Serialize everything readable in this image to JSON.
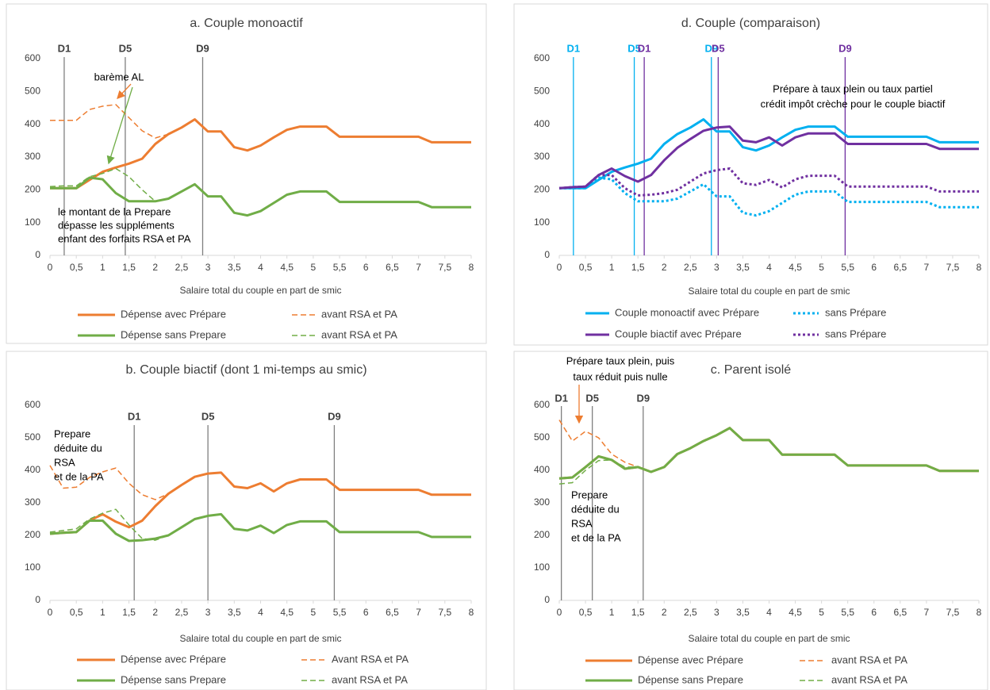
{
  "chart_data": [
    {
      "type": "line",
      "title": "a. Couple monoactif",
      "x_label": "Salaire total du couple en part de smic",
      "x": [
        0,
        0.25,
        0.5,
        0.75,
        1,
        1.25,
        1.5,
        1.75,
        2,
        2.25,
        2.5,
        2.75,
        3,
        3.25,
        3.5,
        3.75,
        4,
        4.25,
        4.5,
        4.75,
        5,
        5.25,
        5.5,
        5.75,
        6,
        6.25,
        6.5,
        6.75,
        7,
        7.25,
        7.5,
        7.75,
        8
      ],
      "xlim": [
        0,
        8
      ],
      "ylim": [
        0,
        600
      ],
      "yticks": [
        0,
        100,
        200,
        300,
        400,
        500,
        600
      ],
      "xticks": [
        0,
        {
          "value": 0.5,
          "label": "0,5"
        },
        1,
        {
          "value": 1.5,
          "label": "1,5"
        },
        2,
        {
          "value": 2.5,
          "label": "2,5"
        },
        3,
        {
          "value": 3.5,
          "label": "3,5"
        },
        4,
        {
          "value": 4.5,
          "label": "4,5"
        },
        5,
        {
          "value": 5.5,
          "label": "5,5"
        },
        6,
        {
          "value": 6.5,
          "label": "6,5"
        },
        7,
        {
          "value": 7.5,
          "label": "7,5"
        },
        8
      ],
      "series": [
        {
          "name": "Dépense avec Prépare",
          "color": "#ed7d31",
          "style": "solid",
          "values": [
            205,
            205,
            205,
            230,
            255,
            268,
            280,
            295,
            340,
            370,
            390,
            415,
            378,
            378,
            330,
            320,
            335,
            360,
            383,
            393,
            393,
            393,
            362,
            362,
            362,
            362,
            362,
            362,
            362,
            345,
            345,
            345,
            345
          ]
        },
        {
          "name": "avant RSA et PA",
          "color": "#ed7d31",
          "style": "dashed",
          "values": [
            412,
            412,
            412,
            445,
            455,
            460,
            420,
            380,
            358,
            370,
            null,
            null,
            null,
            null,
            null,
            null,
            null,
            null,
            null,
            null,
            null,
            null,
            null,
            null,
            null,
            null,
            null,
            null,
            null,
            null,
            null,
            null,
            null
          ]
        },
        {
          "name": "Dépense sans Prepare",
          "color": "#70ad47",
          "style": "solid",
          "values": [
            205,
            205,
            205,
            237,
            232,
            190,
            165,
            165,
            165,
            173,
            195,
            217,
            180,
            180,
            130,
            122,
            135,
            160,
            185,
            195,
            195,
            195,
            163,
            163,
            163,
            163,
            163,
            163,
            163,
            147,
            147,
            147,
            147
          ]
        },
        {
          "name": "avant RSA et PA",
          "color": "#70ad47",
          "style": "dashed",
          "values": [
            210,
            212,
            212,
            240,
            250,
            265,
            240,
            200,
            165,
            null,
            null,
            null,
            null,
            null,
            null,
            null,
            null,
            null,
            null,
            null,
            null,
            null,
            null,
            null,
            null,
            null,
            null,
            null,
            null,
            null,
            null,
            null,
            null
          ]
        }
      ],
      "vlines": [
        {
          "x": 0.27,
          "label": "D1",
          "color": "#7f7f7f"
        },
        {
          "x": 1.43,
          "label": "D5",
          "color": "#7f7f7f"
        },
        {
          "x": 2.9,
          "label": "D9",
          "color": "#7f7f7f"
        }
      ],
      "annotations": [
        [
          "barème AL"
        ],
        [
          "le montant de la Prepare",
          "dépasse les suppléments",
          "enfant des forfaits RSA et PA"
        ]
      ]
    },
    {
      "type": "line",
      "title": "d. Couple (comparaison)",
      "x_label": "Salaire total du couple en part de smic",
      "x": [
        0,
        0.25,
        0.5,
        0.75,
        1,
        1.25,
        1.5,
        1.75,
        2,
        2.25,
        2.5,
        2.75,
        3,
        3.25,
        3.5,
        3.75,
        4,
        4.25,
        4.5,
        4.75,
        5,
        5.25,
        5.5,
        5.75,
        6,
        6.25,
        6.5,
        6.75,
        7,
        7.25,
        7.5,
        7.75,
        8
      ],
      "xlim": [
        0,
        8
      ],
      "ylim": [
        0,
        600
      ],
      "yticks": [
        0,
        100,
        200,
        300,
        400,
        500,
        600
      ],
      "xticks": [
        0,
        {
          "value": 0.5,
          "label": "0,5"
        },
        1,
        {
          "value": 1.5,
          "label": "1,5"
        },
        2,
        {
          "value": 2.5,
          "label": "2,5"
        },
        3,
        {
          "value": 3.5,
          "label": "3,5"
        },
        4,
        {
          "value": 4.5,
          "label": "4,5"
        },
        5,
        {
          "value": 5.5,
          "label": "5,5"
        },
        6,
        {
          "value": 6.5,
          "label": "6,5"
        },
        7,
        {
          "value": 7.5,
          "label": "7,5"
        },
        8
      ],
      "series": [
        {
          "name": "Couple monoactif avec Prépare",
          "color": "#00b0f0",
          "style": "solid",
          "values": [
            205,
            205,
            205,
            230,
            255,
            268,
            280,
            295,
            340,
            370,
            390,
            415,
            378,
            378,
            330,
            320,
            335,
            360,
            383,
            393,
            393,
            393,
            362,
            362,
            362,
            362,
            362,
            362,
            362,
            345,
            345,
            345,
            345
          ]
        },
        {
          "name": "sans Prépare",
          "color": "#00b0f0",
          "style": "dotted",
          "values": [
            205,
            205,
            205,
            237,
            232,
            190,
            165,
            165,
            165,
            173,
            195,
            217,
            180,
            180,
            130,
            122,
            135,
            160,
            185,
            195,
            195,
            195,
            163,
            163,
            163,
            163,
            163,
            163,
            163,
            147,
            147,
            147,
            147
          ]
        },
        {
          "name": "Couple biactif avec Prépare",
          "color": "#7030a0",
          "style": "solid",
          "values": [
            205,
            208,
            210,
            245,
            265,
            242,
            225,
            245,
            290,
            328,
            355,
            380,
            390,
            393,
            350,
            345,
            360,
            335,
            360,
            372,
            372,
            372,
            340,
            340,
            340,
            340,
            340,
            340,
            340,
            325,
            325,
            325,
            325
          ]
        },
        {
          "name": "sans Prépare",
          "color": "#7030a0",
          "style": "dotted",
          "values": [
            205,
            208,
            210,
            245,
            245,
            205,
            183,
            185,
            190,
            200,
            225,
            250,
            260,
            265,
            220,
            215,
            230,
            207,
            232,
            243,
            243,
            243,
            210,
            210,
            210,
            210,
            210,
            210,
            210,
            195,
            195,
            195,
            195
          ]
        }
      ],
      "vlines": [
        {
          "x": 0.27,
          "label": "D1",
          "color": "#00b0f0"
        },
        {
          "x": 1.43,
          "label": "D5",
          "color": "#00b0f0"
        },
        {
          "x": 2.9,
          "label": "D9",
          "color": "#00b0f0"
        },
        {
          "x": 1.62,
          "label": "D1",
          "color": "#7030a0"
        },
        {
          "x": 3.03,
          "label": "D5",
          "color": "#7030a0"
        },
        {
          "x": 5.45,
          "label": "D9",
          "color": "#7030a0"
        }
      ],
      "annotations": [
        [
          "Prépare à taux plein ou taux partiel",
          "crédit impôt crèche pour le couple biactif"
        ]
      ]
    },
    {
      "type": "line",
      "title": "b. Couple biactif (dont 1 mi-temps au smic)",
      "x_label": "Salaire total du couple en part de smic",
      "x": [
        0,
        0.25,
        0.5,
        0.75,
        1,
        1.25,
        1.5,
        1.75,
        2,
        2.25,
        2.5,
        2.75,
        3,
        3.25,
        3.5,
        3.75,
        4,
        4.25,
        4.5,
        4.75,
        5,
        5.25,
        5.5,
        5.75,
        6,
        6.25,
        6.5,
        6.75,
        7,
        7.25,
        7.5,
        7.75,
        8
      ],
      "xlim": [
        0,
        8
      ],
      "ylim": [
        0,
        600
      ],
      "yticks": [
        0,
        100,
        200,
        300,
        400,
        500,
        600
      ],
      "xticks": [
        0,
        {
          "value": 0.5,
          "label": "0,5"
        },
        1,
        {
          "value": 1.5,
          "label": "1,5"
        },
        2,
        {
          "value": 2.5,
          "label": "2,5"
        },
        3,
        {
          "value": 3.5,
          "label": "3,5"
        },
        4,
        {
          "value": 4.5,
          "label": "4,5"
        },
        5,
        {
          "value": 5.5,
          "label": "5,5"
        },
        6,
        {
          "value": 6.5,
          "label": "6,5"
        },
        7,
        {
          "value": 7.5,
          "label": "7,5"
        },
        8
      ],
      "series": [
        {
          "name": "Dépense avec Prépare",
          "color": "#ed7d31",
          "style": "solid",
          "values": [
            205,
            208,
            210,
            245,
            265,
            242,
            225,
            245,
            290,
            328,
            355,
            380,
            390,
            393,
            350,
            345,
            360,
            335,
            360,
            372,
            372,
            372,
            340,
            340,
            340,
            340,
            340,
            340,
            340,
            325,
            325,
            325,
            325
          ]
        },
        {
          "name": "Avant RSA et PA",
          "color": "#ed7d31",
          "style": "dashed",
          "values": [
            415,
            345,
            348,
            378,
            395,
            407,
            360,
            325,
            310,
            328,
            null,
            null,
            null,
            null,
            null,
            null,
            null,
            null,
            null,
            null,
            null,
            null,
            null,
            null,
            null,
            null,
            null,
            null,
            null,
            null,
            null,
            null,
            null
          ]
        },
        {
          "name": "Dépense sans Prepare",
          "color": "#70ad47",
          "style": "solid",
          "values": [
            205,
            208,
            210,
            245,
            245,
            205,
            183,
            185,
            190,
            200,
            225,
            250,
            260,
            265,
            220,
            215,
            230,
            207,
            232,
            243,
            243,
            243,
            210,
            210,
            210,
            210,
            210,
            210,
            210,
            195,
            195,
            195,
            195
          ]
        },
        {
          "name": "avant RSA et PA",
          "color": "#70ad47",
          "style": "dashed",
          "values": [
            210,
            215,
            220,
            250,
            268,
            280,
            232,
            190,
            185,
            200,
            null,
            null,
            null,
            null,
            null,
            null,
            null,
            null,
            null,
            null,
            null,
            null,
            null,
            null,
            null,
            null,
            null,
            null,
            null,
            null,
            null,
            null,
            null
          ]
        }
      ],
      "vlines": [
        {
          "x": 1.6,
          "label": "D1",
          "color": "#7f7f7f"
        },
        {
          "x": 3.0,
          "label": "D5",
          "color": "#7f7f7f"
        },
        {
          "x": 5.4,
          "label": "D9",
          "color": "#7f7f7f"
        }
      ],
      "annotations": [
        [
          "Prepare",
          "déduite du",
          "RSA",
          "et de la PA"
        ]
      ]
    },
    {
      "type": "line",
      "title": "c. Parent isolé",
      "x_label": "Salaire total du couple en part de smic",
      "x": [
        0,
        0.25,
        0.5,
        0.75,
        1,
        1.25,
        1.5,
        1.75,
        2,
        2.25,
        2.5,
        2.75,
        3,
        3.25,
        3.5,
        3.75,
        4,
        4.25,
        4.5,
        4.75,
        5,
        5.25,
        5.5,
        5.75,
        6,
        6.25,
        6.5,
        6.75,
        7,
        7.25,
        7.5,
        7.75,
        8
      ],
      "xlim": [
        0,
        8
      ],
      "ylim": [
        0,
        600
      ],
      "yticks": [
        0,
        100,
        200,
        300,
        400,
        500,
        600
      ],
      "xticks": [
        0,
        {
          "value": 0.5,
          "label": "0,5"
        },
        1,
        {
          "value": 1.5,
          "label": "1,5"
        },
        2,
        {
          "value": 2.5,
          "label": "2,5"
        },
        3,
        {
          "value": 3.5,
          "label": "3,5"
        },
        4,
        {
          "value": 4.5,
          "label": "4,5"
        },
        5,
        {
          "value": 5.5,
          "label": "5,5"
        },
        6,
        {
          "value": 6.5,
          "label": "6,5"
        },
        7,
        {
          "value": 7.5,
          "label": "7,5"
        },
        8
      ],
      "series": [
        {
          "name": "Dépense avec Prépare",
          "color": "#ed7d31",
          "style": "solid",
          "values": [
            375,
            378,
            410,
            443,
            432,
            405,
            410,
            395,
            410,
            450,
            468,
            490,
            508,
            530,
            493,
            493,
            493,
            448,
            448,
            448,
            448,
            448,
            415,
            415,
            415,
            415,
            415,
            415,
            415,
            398,
            398,
            398,
            398
          ]
        },
        {
          "name": "avant RSA et PA",
          "color": "#ed7d31",
          "style": "dashed",
          "values": [
            555,
            490,
            520,
            500,
            450,
            425,
            410,
            null,
            null,
            null,
            null,
            null,
            null,
            null,
            null,
            null,
            null,
            null,
            null,
            null,
            null,
            null,
            null,
            null,
            null,
            null,
            null,
            null,
            null,
            null,
            null,
            null,
            null
          ]
        },
        {
          "name": "Dépense sans Prepare",
          "color": "#70ad47",
          "style": "solid",
          "values": [
            375,
            378,
            410,
            443,
            432,
            405,
            410,
            395,
            410,
            450,
            468,
            490,
            508,
            530,
            493,
            493,
            493,
            448,
            448,
            448,
            448,
            448,
            415,
            415,
            415,
            415,
            415,
            415,
            415,
            398,
            398,
            398,
            398
          ]
        },
        {
          "name": "avant RSA et PA",
          "color": "#70ad47",
          "style": "dashed",
          "values": [
            358,
            362,
            400,
            430,
            432,
            410,
            410,
            null,
            null,
            null,
            null,
            null,
            null,
            null,
            null,
            null,
            null,
            null,
            null,
            null,
            null,
            null,
            null,
            null,
            null,
            null,
            null,
            null,
            null,
            null,
            null,
            null,
            null
          ]
        }
      ],
      "vlines": [
        {
          "x": 0.04,
          "label": "D1",
          "color": "#7f7f7f"
        },
        {
          "x": 0.63,
          "label": "D5",
          "color": "#7f7f7f"
        },
        {
          "x": 1.6,
          "label": "D9",
          "color": "#7f7f7f"
        }
      ],
      "annotations": [
        [
          "Prépare taux plein, puis",
          "taux réduit puis nulle"
        ],
        [
          "Prepare",
          "déduite du",
          "RSA",
          "et de la PA"
        ]
      ]
    }
  ]
}
